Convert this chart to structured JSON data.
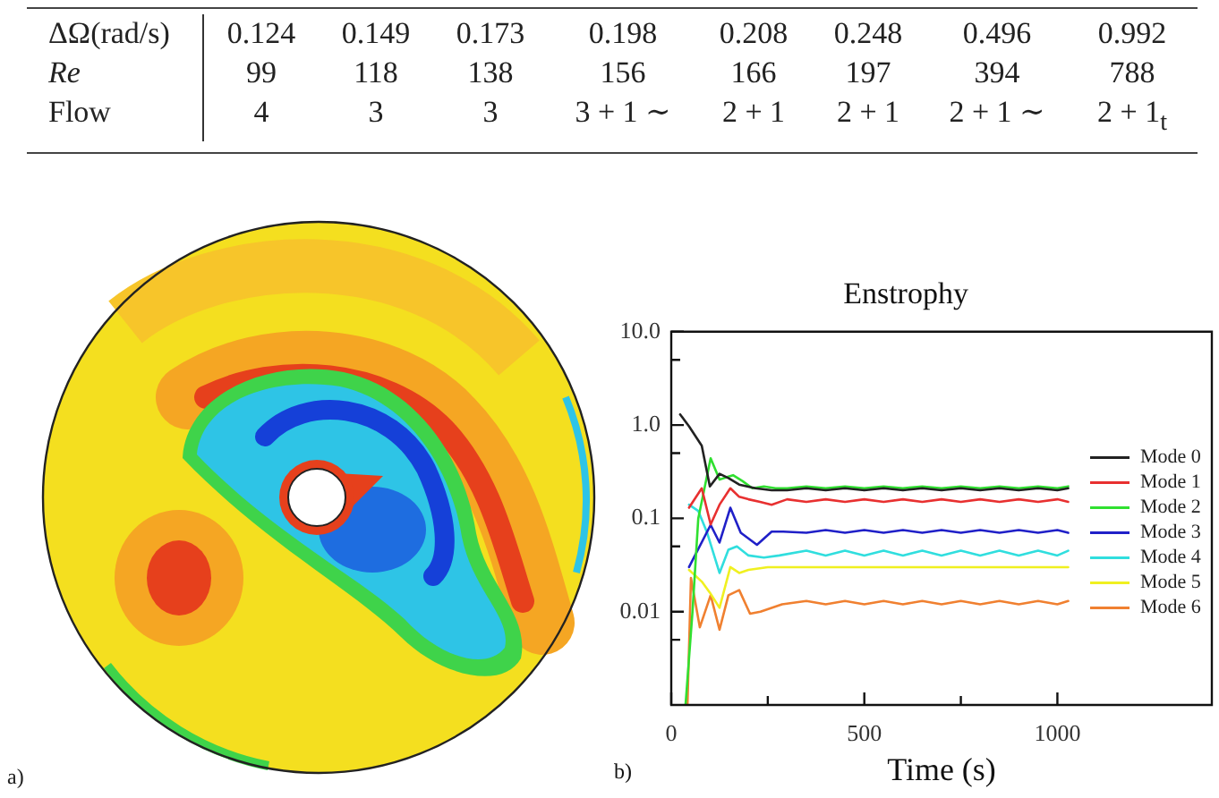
{
  "chart_data": [
    {
      "type": "other",
      "y_categories": [
        "ΔΩ(rad/s)",
        "Re",
        "Flow"
      ],
      "cell_labels": [
        [
          "0.124",
          "0.149",
          "0.173",
          "0.198",
          "0.208",
          "0.248",
          "0.496",
          "0.992"
        ],
        [
          "99",
          "118",
          "138",
          "156",
          "166",
          "197",
          "394",
          "788"
        ],
        [
          "4",
          "3",
          "3",
          "3 + 1 ∼",
          "2 + 1",
          "2 + 1",
          "2 + 1 ∼",
          "2 + 1$_{t}$"
        ]
      ]
    },
    {
      "type": "other",
      "annotations": [
        "a)"
      ]
    },
    {
      "type": "line",
      "title": "Enstrophy",
      "xlabel": "Time (s)",
      "annotations": [
        "b)"
      ],
      "log": "y",
      "legend": "right",
      "xlim": [
        0,
        1400
      ],
      "xticks": [
        0,
        {
          "value": 250,
          "label": null
        },
        500,
        {
          "value": 750,
          "label": null
        },
        1000
      ],
      "ylim": [
        0.001,
        10
      ],
      "yticks": [
        {
          "value": 10,
          "label": "10.0"
        },
        {
          "value": 5,
          "label": null
        },
        {
          "value": 1,
          "label": "1.0"
        },
        {
          "value": 0.5,
          "label": null
        },
        0.1,
        {
          "value": 0.05,
          "label": null
        },
        0.01,
        {
          "value": 0.005,
          "label": null
        }
      ],
      "series": [
        {
          "name": "Mode 0",
          "color": "#222222",
          "x": [
            23,
            46,
            79,
            100,
            125,
            148,
            176,
            218,
            260,
            300,
            350,
            400,
            450,
            500,
            550,
            600,
            650,
            700,
            750,
            800,
            850,
            900,
            950,
            1000,
            1028
          ],
          "values": [
            1.3,
            0.97,
            0.6,
            0.22,
            0.3,
            0.27,
            0.23,
            0.21,
            0.2,
            0.2,
            0.21,
            0.2,
            0.21,
            0.2,
            0.21,
            0.2,
            0.21,
            0.2,
            0.21,
            0.2,
            0.21,
            0.2,
            0.21,
            0.2,
            0.21
          ]
        },
        {
          "name": "Mode 1",
          "color": "#e83030",
          "x": [
            46,
            79,
            102,
            125,
            153,
            176,
            200,
            230,
            260,
            300,
            350,
            400,
            450,
            500,
            550,
            600,
            650,
            700,
            750,
            800,
            850,
            900,
            950,
            1000,
            1028
          ],
          "values": [
            0.13,
            0.21,
            0.086,
            0.14,
            0.21,
            0.17,
            0.16,
            0.15,
            0.14,
            0.16,
            0.15,
            0.16,
            0.15,
            0.16,
            0.15,
            0.16,
            0.15,
            0.16,
            0.15,
            0.16,
            0.15,
            0.16,
            0.15,
            0.16,
            0.15
          ]
        },
        {
          "name": "Mode 2",
          "color": "#30e030",
          "x": [
            37,
            55,
            70,
            102,
            125,
            148,
            160,
            185,
            210,
            240,
            270,
            300,
            350,
            400,
            450,
            500,
            550,
            600,
            650,
            700,
            750,
            800,
            850,
            900,
            950,
            1000,
            1028
          ],
          "values": [
            0.001,
            0.01,
            0.1,
            0.44,
            0.26,
            0.28,
            0.29,
            0.25,
            0.21,
            0.22,
            0.21,
            0.21,
            0.22,
            0.21,
            0.22,
            0.21,
            0.22,
            0.21,
            0.22,
            0.21,
            0.22,
            0.21,
            0.22,
            0.21,
            0.22,
            0.21,
            0.22
          ]
        },
        {
          "name": "Mode 3",
          "color": "#2020c8",
          "x": [
            46,
            102,
            125,
            153,
            180,
            222,
            260,
            290,
            350,
            400,
            450,
            500,
            550,
            600,
            650,
            700,
            750,
            800,
            850,
            900,
            950,
            1000,
            1028
          ],
          "values": [
            0.03,
            0.085,
            0.055,
            0.13,
            0.07,
            0.052,
            0.072,
            0.072,
            0.07,
            0.075,
            0.07,
            0.075,
            0.07,
            0.075,
            0.07,
            0.075,
            0.07,
            0.075,
            0.07,
            0.075,
            0.07,
            0.075,
            0.07
          ]
        },
        {
          "name": "Mode 4",
          "color": "#30dede",
          "x": [
            46,
            70,
            93,
            125,
            148,
            170,
            200,
            240,
            280,
            350,
            400,
            450,
            500,
            550,
            600,
            650,
            700,
            750,
            800,
            850,
            900,
            950,
            1000,
            1028
          ],
          "values": [
            0.14,
            0.12,
            0.07,
            0.026,
            0.046,
            0.05,
            0.04,
            0.038,
            0.04,
            0.045,
            0.04,
            0.045,
            0.04,
            0.045,
            0.04,
            0.045,
            0.04,
            0.045,
            0.04,
            0.045,
            0.04,
            0.045,
            0.04,
            0.045
          ]
        },
        {
          "name": "Mode 5",
          "color": "#f0f020",
          "x": [
            46,
            79,
            100,
            125,
            153,
            176,
            200,
            250,
            300,
            400,
            500,
            600,
            700,
            800,
            900,
            1000,
            1028
          ],
          "values": [
            0.028,
            0.021,
            0.016,
            0.011,
            0.03,
            0.026,
            0.028,
            0.03,
            0.03,
            0.03,
            0.03,
            0.03,
            0.03,
            0.03,
            0.03,
            0.03,
            0.03
          ]
        },
        {
          "name": "Mode 6",
          "color": "#f08030",
          "x": [
            42,
            51,
            74,
            102,
            125,
            148,
            176,
            204,
            231,
            287,
            350,
            400,
            450,
            500,
            550,
            600,
            650,
            700,
            750,
            800,
            850,
            900,
            950,
            1000,
            1028
          ],
          "values": [
            0.001,
            0.023,
            0.0068,
            0.015,
            0.0064,
            0.015,
            0.017,
            0.0095,
            0.01,
            0.012,
            0.013,
            0.012,
            0.013,
            0.012,
            0.013,
            0.012,
            0.013,
            0.012,
            0.013,
            0.012,
            0.013,
            0.012,
            0.013,
            0.012,
            0.013
          ]
        }
      ]
    }
  ]
}
